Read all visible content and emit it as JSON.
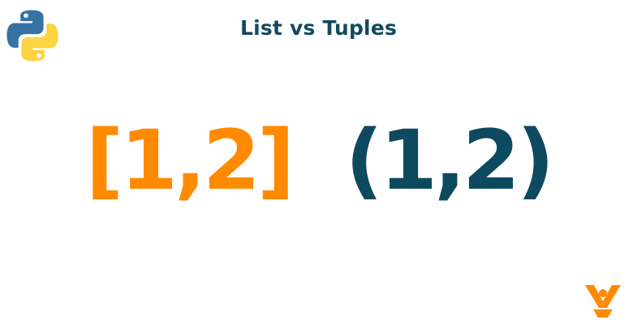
{
  "title": "List vs Tuples",
  "list_example": "[1,2]",
  "tuple_example": "(1,2)",
  "colors": {
    "title": "#124a5f",
    "list": "#ff8a00",
    "tuple": "#0e4a5f",
    "python_blue": "#3772a5",
    "python_yellow": "#fdd341",
    "brand_orange": "#ff8a00"
  },
  "icons": {
    "top_left": "python-logo-icon",
    "bottom_right": "brand-logo-icon"
  }
}
